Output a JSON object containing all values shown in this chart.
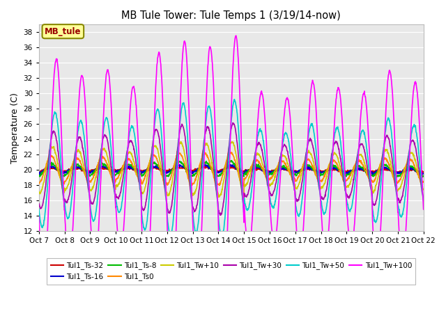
{
  "title": "MB Tule Tower: Tule Temps 1 (3/19/14-now)",
  "ylabel": "Temperature (C)",
  "ylim": [
    12,
    39
  ],
  "yticks": [
    12,
    14,
    16,
    18,
    20,
    22,
    24,
    26,
    28,
    30,
    32,
    34,
    36,
    38
  ],
  "x_labels": [
    "Oct 7",
    "Oct 8",
    "Oct 9",
    "Oct 10",
    "Oct 11",
    "Oct 12",
    "Oct 13",
    "Oct 14",
    "Oct 15",
    "Oct 16",
    "Oct 17",
    "Oct 18",
    "Oct 19",
    "Oct 20",
    "Oct 21",
    "Oct 22"
  ],
  "n_days": 15,
  "legend_box_color": "#ffff99",
  "legend_box_edge": "#888800",
  "series": [
    {
      "label": "Tul1_Ts-32",
      "color": "#cc0000",
      "lw": 1.2,
      "base": 20.0,
      "amp": 0.2,
      "phase": 0.15
    },
    {
      "label": "Tul1_Ts-16",
      "color": "#0000cc",
      "lw": 1.2,
      "base": 20.0,
      "amp": 0.4,
      "phase": 0.15
    },
    {
      "label": "Tul1_Ts-8",
      "color": "#00bb00",
      "lw": 1.2,
      "base": 20.0,
      "amp": 0.8,
      "phase": 0.15
    },
    {
      "label": "Tul1_Ts0",
      "color": "#ff8800",
      "lw": 1.2,
      "base": 20.0,
      "amp": 1.8,
      "phase": 0.15
    },
    {
      "label": "Tul1_Tw+10",
      "color": "#cccc00",
      "lw": 1.2,
      "base": 20.0,
      "amp": 3.0,
      "phase": 0.1
    },
    {
      "label": "Tul1_Tw+30",
      "color": "#aa00aa",
      "lw": 1.2,
      "base": 20.0,
      "amp": 5.0,
      "phase": 0.05
    },
    {
      "label": "Tul1_Tw+50",
      "color": "#00cccc",
      "lw": 1.2,
      "base": 20.0,
      "amp": 7.5,
      "phase": 0.0
    },
    {
      "label": "Tul1_Tw+100",
      "color": "#ff00ff",
      "lw": 1.2,
      "base": 20.0,
      "amp": 14.5,
      "phase": -0.05
    }
  ],
  "day_amplitudes": [
    1.0,
    0.85,
    0.9,
    0.75,
    1.05,
    1.15,
    1.1,
    1.2,
    0.7,
    0.65,
    0.8,
    0.75,
    0.7,
    0.9,
    0.8
  ],
  "base_drift": [
    0.0,
    0.0,
    0.05,
    0.05,
    0.05,
    0.1,
    0.1,
    0.1,
    0.0,
    -0.05,
    -0.05,
    -0.1,
    -0.1,
    -0.1,
    -0.15
  ]
}
